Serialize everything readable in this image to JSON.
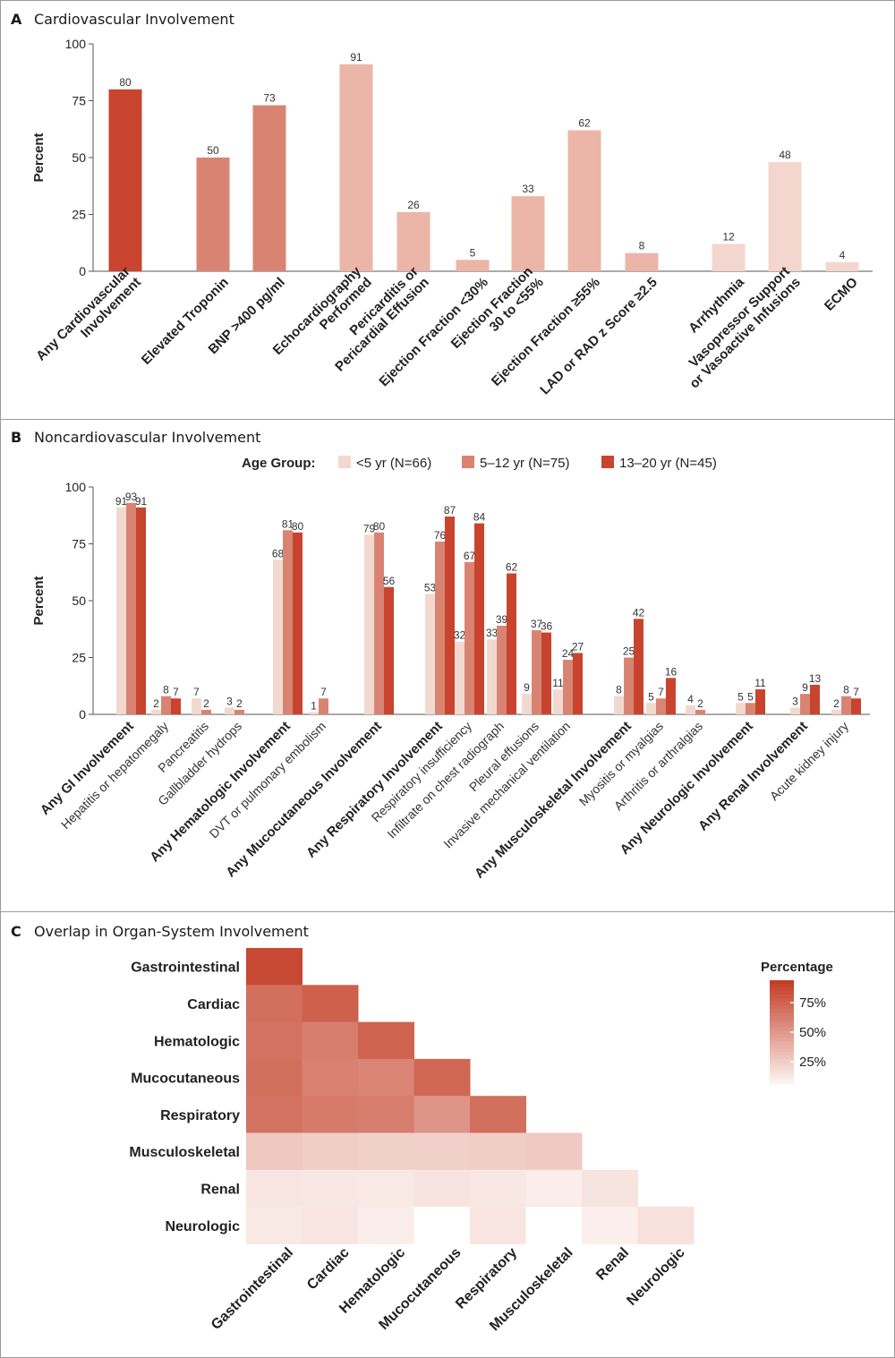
{
  "chart_data": [
    {
      "panel": "A",
      "type": "bar",
      "title": "Cardiovascular Involvement",
      "ylabel": "Percent",
      "ylim": [
        0,
        100
      ],
      "yticks": [
        "0",
        "25",
        "50",
        "75",
        "100"
      ],
      "bars": [
        {
          "label": "Any Cardiovascular Involvement",
          "value": 80,
          "color": "#c8442e"
        },
        {
          "label": "Elevated Troponin",
          "value": 50,
          "color": "#d98473"
        },
        {
          "label": "BNP >400 pg/ml",
          "value": 73,
          "color": "#d98473"
        },
        {
          "label": "Echocardiography Performed",
          "value": 91,
          "color": "#ebb5a8"
        },
        {
          "label": "Pericarditis or Pericardial Effusion",
          "value": 26,
          "color": "#ebb5a8"
        },
        {
          "label": "Ejection Fraction <30%",
          "value": 5,
          "color": "#ebb5a8"
        },
        {
          "label": "Ejection Fraction 30 to <55%",
          "value": 33,
          "color": "#ebb5a8"
        },
        {
          "label": "Ejection Fraction ≥55%",
          "value": 62,
          "color": "#ebb5a8"
        },
        {
          "label": "LAD or RAD z Score ≥2.5",
          "value": 8,
          "color": "#ebb5a8"
        },
        {
          "label": "Arrhythmia",
          "value": 12,
          "color": "#f3d6cd"
        },
        {
          "label": "Vasopressor Support or Vasoactive Infusions",
          "value": 48,
          "color": "#f3d6cd"
        },
        {
          "label": "ECMO",
          "value": 4,
          "color": "#f3d6cd"
        }
      ]
    },
    {
      "panel": "B",
      "type": "bar",
      "title": "Noncardiovascular Involvement",
      "ylabel": "Percent",
      "ylim": [
        0,
        100
      ],
      "yticks": [
        "0",
        "25",
        "50",
        "75",
        "100"
      ],
      "legend_title": "Age Group:",
      "series": [
        {
          "name": "<5 yr (N=66)",
          "color": "#f2d9cf",
          "values": [
            91,
            2,
            7,
            3,
            68,
            1,
            79,
            53,
            32,
            33,
            9,
            11,
            8,
            5,
            4,
            5,
            3,
            2
          ]
        },
        {
          "name": "5–12 yr (N=75)",
          "color": "#d98473",
          "values": [
            93,
            8,
            2,
            2,
            81,
            7,
            80,
            76,
            67,
            39,
            37,
            24,
            25,
            7,
            2,
            5,
            9,
            8
          ]
        },
        {
          "name": "13–20 yr (N=45)",
          "color": "#c8442e",
          "values": [
            91,
            7,
            null,
            null,
            80,
            null,
            56,
            87,
            84,
            62,
            36,
            27,
            42,
            16,
            null,
            11,
            13,
            7
          ]
        }
      ],
      "categories": [
        {
          "label": "Any GI Involvement",
          "bold": true
        },
        {
          "label": "Hepatitis or hepatomegaly",
          "bold": false
        },
        {
          "label": "Pancreatitis",
          "bold": false
        },
        {
          "label": "Gallbladder hydrops",
          "bold": false
        },
        {
          "label": "Any Hematologic Involvement",
          "bold": true
        },
        {
          "label": "DVT or pulmonary embolism",
          "bold": false
        },
        {
          "label": "Any Mucocutaneous Involvement",
          "bold": true
        },
        {
          "label": "Any Respiratory Involvement",
          "bold": true
        },
        {
          "label": "Respiratory insufficiency",
          "bold": false
        },
        {
          "label": "Infiltrate on chest radiograph",
          "bold": false
        },
        {
          "label": "Pleural effusions",
          "bold": false
        },
        {
          "label": "Invasive mechanical ventilation",
          "bold": false
        },
        {
          "label": "Any Musculoskeletal Involvement",
          "bold": true
        },
        {
          "label": "Myositis or myalgias",
          "bold": false
        },
        {
          "label": "Arthritis or arthralgias",
          "bold": false
        },
        {
          "label": "Any Neurologic Involvement",
          "bold": true
        },
        {
          "label": "Any Renal Involvement",
          "bold": true
        },
        {
          "label": "Acute kidney injury",
          "bold": false
        }
      ]
    },
    {
      "panel": "C",
      "type": "heatmap",
      "title": "Overlap in Organ-System Involvement",
      "rows": [
        "Gastrointestinal",
        "Cardiac",
        "Hematologic",
        "Mucocutaneous",
        "Respiratory",
        "Musculoskeletal",
        "Renal",
        "Neurologic"
      ],
      "columns": [
        "Gastrointestinal",
        "Cardiac",
        "Hematologic",
        "Mucocutaneous",
        "Respiratory",
        "Musculoskeletal",
        "Renal",
        "Neurologic"
      ],
      "values": [
        [
          92
        ],
        [
          72,
          80
        ],
        [
          70,
          64,
          78
        ],
        [
          72,
          62,
          60,
          76
        ],
        [
          70,
          66,
          64,
          52,
          72
        ],
        [
          25,
          22,
          20,
          20,
          22,
          24
        ],
        [
          9,
          8,
          7,
          10,
          8,
          5,
          10
        ],
        [
          7,
          9,
          5,
          null,
          9,
          null,
          4,
          11
        ]
      ],
      "legend_title": "Percentage",
      "legend_ticks": [
        "75%",
        "50%",
        "25%"
      ],
      "color_low": "#fdf6f4",
      "color_high": "#c23a22"
    }
  ]
}
